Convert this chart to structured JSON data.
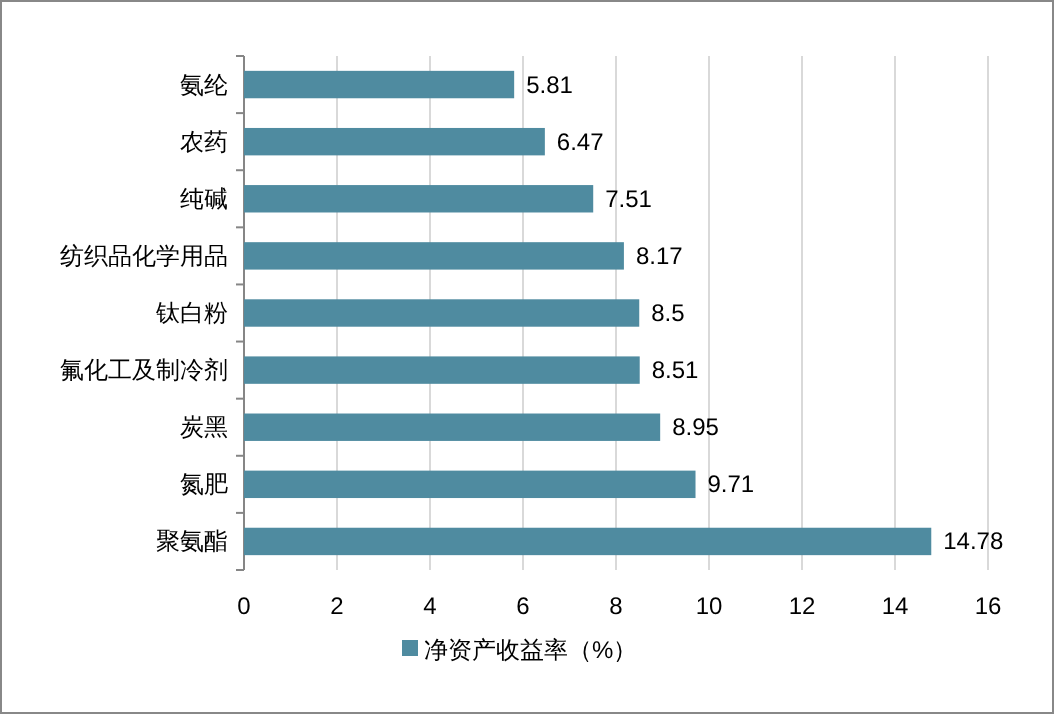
{
  "chart_data": {
    "type": "bar",
    "orientation": "horizontal",
    "categories": [
      "氨纶",
      "农药",
      "纯碱",
      "纺织品化学用品",
      "钛白粉",
      "氟化工及制冷剂",
      "炭黑",
      "氮肥",
      "聚氨酯"
    ],
    "series": [
      {
        "name": "净资产收益率（%）",
        "color": "#4f8ba0",
        "values": [
          5.81,
          6.47,
          7.51,
          8.17,
          8.5,
          8.51,
          8.95,
          9.71,
          14.78
        ]
      }
    ],
    "xlim": [
      0,
      16
    ],
    "xticks": [
      0,
      2,
      4,
      6,
      8,
      10,
      12,
      14,
      16
    ],
    "grid": "x",
    "data_labels": true,
    "legend": "bottom"
  }
}
